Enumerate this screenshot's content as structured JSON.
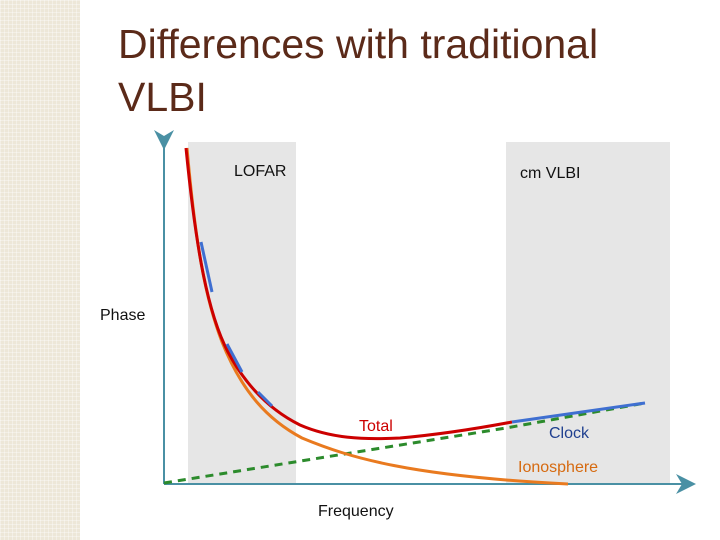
{
  "slide": {
    "title_line_1": "Differences with traditional",
    "title_line_2": "VLBI"
  },
  "diagram": {
    "region_left_label": "LOFAR",
    "region_right_label": "cm VLBI",
    "y_axis_label": "Phase",
    "x_axis_label": "Frequency",
    "curve_labels": {
      "total": "Total",
      "clock": "Clock",
      "ionosphere": "Ionosphere"
    },
    "colors": {
      "background_band": "#ede7d8",
      "title": "#5b2a19",
      "region_fill": "#e6e6e6",
      "axis": "#4a90a4",
      "total": "#cc0000",
      "clock": "#3f6fd1",
      "ionosphere": "#e97a1f",
      "dashed_line": "#2c8b2c"
    }
  }
}
